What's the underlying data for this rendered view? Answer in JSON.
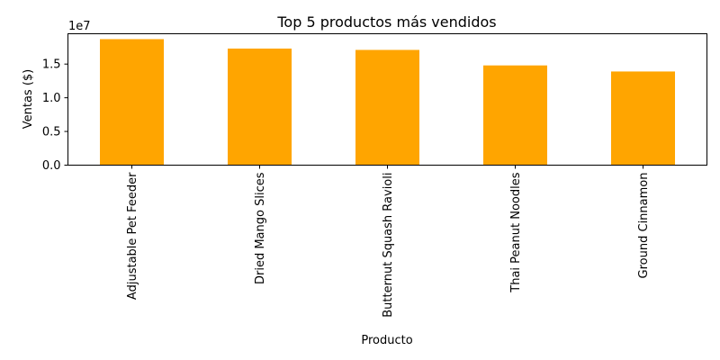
{
  "chart_data": {
    "type": "bar",
    "title": "Top 5 productos más vendidos",
    "xlabel": "Producto",
    "ylabel": "Ventas ($)",
    "y_offset_label": "1e7",
    "categories": [
      "Adjustable Pet Feeder",
      "Dried Mango Slices",
      "Butternut Squash Ravioli",
      "Thai Peanut Noodles",
      "Ground Cinnamon"
    ],
    "values": [
      18700000,
      17300000,
      17100000,
      14800000,
      13900000
    ],
    "ylim": [
      0,
      19500000
    ],
    "y_ticks": [
      0,
      5000000,
      10000000,
      15000000
    ],
    "y_tick_labels": [
      "0.0",
      "0.5",
      "1.0",
      "1.5"
    ],
    "bar_color": "#ffa500",
    "grid": false,
    "legend": "none"
  }
}
